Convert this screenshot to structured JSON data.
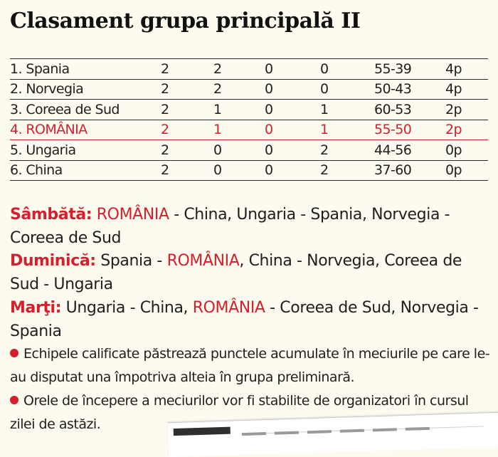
{
  "title": "Clasament grupa principală II",
  "standings": [
    {
      "team": "1. Spania",
      "played": "2",
      "won": "2",
      "drawn": "0",
      "lost": "0",
      "goals": "55-39",
      "points": "4p"
    },
    {
      "team": "2. Norvegia",
      "played": "2",
      "won": "2",
      "drawn": "0",
      "lost": "0",
      "goals": "50-43",
      "points": "4p"
    },
    {
      "team": "3. Coreea de Sud",
      "played": "2",
      "won": "1",
      "drawn": "0",
      "lost": "1",
      "goals": "60-53",
      "points": "2p"
    },
    {
      "team": "4. ROMÂNIA",
      "played": "2",
      "won": "1",
      "drawn": "0",
      "lost": "1",
      "goals": "55-50",
      "points": "2p"
    },
    {
      "team": "5. Ungaria",
      "played": "2",
      "won": "0",
      "drawn": "0",
      "lost": "2",
      "goals": "44-56",
      "points": "0p"
    },
    {
      "team": "6. China",
      "played": "2",
      "won": "0",
      "drawn": "0",
      "lost": "2",
      "goals": "37-60",
      "points": "0p"
    }
  ],
  "schedule": {
    "saturday": {
      "day": "Sâmbătă:",
      "ro": "ROMÂNIA",
      "rest": " - China, Ungaria - Spania, Norvegia - Coreea de Sud"
    },
    "sunday": {
      "day": "Duminică:",
      "before": " Spania - ",
      "ro": "ROMÂNIA",
      "rest": ", China - Norvegia, Coreea de Sud - Ungaria"
    },
    "tuesday": {
      "day": "Marţi:",
      "before": " Ungaria - China, ",
      "ro": "ROMÂNIA",
      "rest": " - Coreea de Sud, Norvegia - Spania"
    }
  },
  "notes": [
    "Echipele calificate păstrează punctele acumulate în meciurile pe care le-au disputat una împotriva alteia în grupa preliminară.",
    "Orele de începere a meciurilor vor fi stabilite de organizatori în cursul zilei de astăzi."
  ],
  "colors": {
    "accent": "#d61f2c",
    "background": "#fdfbf0",
    "text": "#1e1e1e"
  }
}
